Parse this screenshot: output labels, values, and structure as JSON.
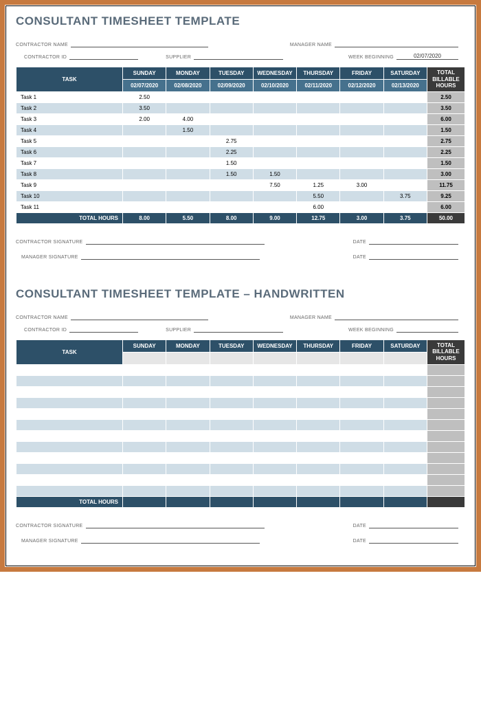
{
  "colors": {
    "border_outer": "#c77a3f",
    "header_dark": "#2d5068",
    "header_mid": "#46718d",
    "total_header": "#3a3a3a",
    "row_even": "#ffffff",
    "row_odd": "#cfdde6",
    "total_col": "#bfbfbf",
    "title_color": "#5a6b7a",
    "blank_header": "#e6e6e6"
  },
  "section1": {
    "title": "CONSULTANT TIMESHEET TEMPLATE",
    "fields": {
      "contractor_name_label": "CONTRACTOR NAME",
      "manager_name_label": "MANAGER NAME",
      "contractor_id_label": "CONTRACTOR ID",
      "supplier_label": "SUPPLIER",
      "week_beginning_label": "WEEK BEGINNING",
      "week_beginning_value": "02/07/2020"
    },
    "table": {
      "task_header": "TASK",
      "days": [
        "SUNDAY",
        "MONDAY",
        "TUESDAY",
        "WEDNESDAY",
        "THURSDAY",
        "FRIDAY",
        "SATURDAY"
      ],
      "dates": [
        "02/07/2020",
        "02/08/2020",
        "02/09/2020",
        "02/10/2020",
        "02/11/2020",
        "02/12/2020",
        "02/13/2020"
      ],
      "total_header_line1": "TOTAL",
      "total_header_line2": "BILLABLE",
      "total_header_line3": "HOURS",
      "rows": [
        {
          "task": "Task 1",
          "vals": [
            "2.50",
            "",
            "",
            "",
            "",
            "",
            ""
          ],
          "total": "2.50"
        },
        {
          "task": "Task 2",
          "vals": [
            "3.50",
            "",
            "",
            "",
            "",
            "",
            ""
          ],
          "total": "3.50"
        },
        {
          "task": "Task 3",
          "vals": [
            "2.00",
            "4.00",
            "",
            "",
            "",
            "",
            ""
          ],
          "total": "6.00"
        },
        {
          "task": "Task 4",
          "vals": [
            "",
            "1.50",
            "",
            "",
            "",
            "",
            ""
          ],
          "total": "1.50"
        },
        {
          "task": "Task 5",
          "vals": [
            "",
            "",
            "2.75",
            "",
            "",
            "",
            ""
          ],
          "total": "2.75"
        },
        {
          "task": "Task 6",
          "vals": [
            "",
            "",
            "2.25",
            "",
            "",
            "",
            ""
          ],
          "total": "2.25"
        },
        {
          "task": "Task 7",
          "vals": [
            "",
            "",
            "1.50",
            "",
            "",
            "",
            ""
          ],
          "total": "1.50"
        },
        {
          "task": "Task 8",
          "vals": [
            "",
            "",
            "1.50",
            "1.50",
            "",
            "",
            ""
          ],
          "total": "3.00"
        },
        {
          "task": "Task 9",
          "vals": [
            "",
            "",
            "",
            "7.50",
            "1.25",
            "3.00",
            ""
          ],
          "total": "11.75"
        },
        {
          "task": "Task 10",
          "vals": [
            "",
            "",
            "",
            "",
            "5.50",
            "",
            "3.75"
          ],
          "total": "9.25"
        },
        {
          "task": "Task 11",
          "vals": [
            "",
            "",
            "",
            "",
            "6.00",
            "",
            ""
          ],
          "total": "6.00"
        }
      ],
      "footer_label": "TOTAL HOURS",
      "footer_vals": [
        "8.00",
        "5.50",
        "8.00",
        "9.00",
        "12.75",
        "3.00",
        "3.75"
      ],
      "footer_total": "50.00"
    },
    "signatures": {
      "contractor_sig_label": "CONTRACTOR SIGNATURE",
      "manager_sig_label": "MANAGER SIGNATURE",
      "date_label": "DATE"
    }
  },
  "section2": {
    "title": "CONSULTANT TIMESHEET TEMPLATE – HANDWRITTEN",
    "fields": {
      "contractor_name_label": "CONTRACTOR NAME",
      "manager_name_label": "MANAGER NAME",
      "contractor_id_label": "CONTRACTOR ID",
      "supplier_label": "SUPPLIER",
      "week_beginning_label": "WEEK BEGINNING"
    },
    "table": {
      "task_header": "TASK",
      "days": [
        "SUNDAY",
        "MONDAY",
        "TUESDAY",
        "WEDNESDAY",
        "THURSDAY",
        "FRIDAY",
        "SATURDAY"
      ],
      "total_header_line1": "TOTAL",
      "total_header_line2": "BILLABLE",
      "total_header_line3": "HOURS",
      "blank_rows": 12,
      "footer_label": "TOTAL HOURS"
    },
    "signatures": {
      "contractor_sig_label": "CONTRACTOR SIGNATURE",
      "manager_sig_label": "MANAGER SIGNATURE",
      "date_label": "DATE"
    }
  }
}
